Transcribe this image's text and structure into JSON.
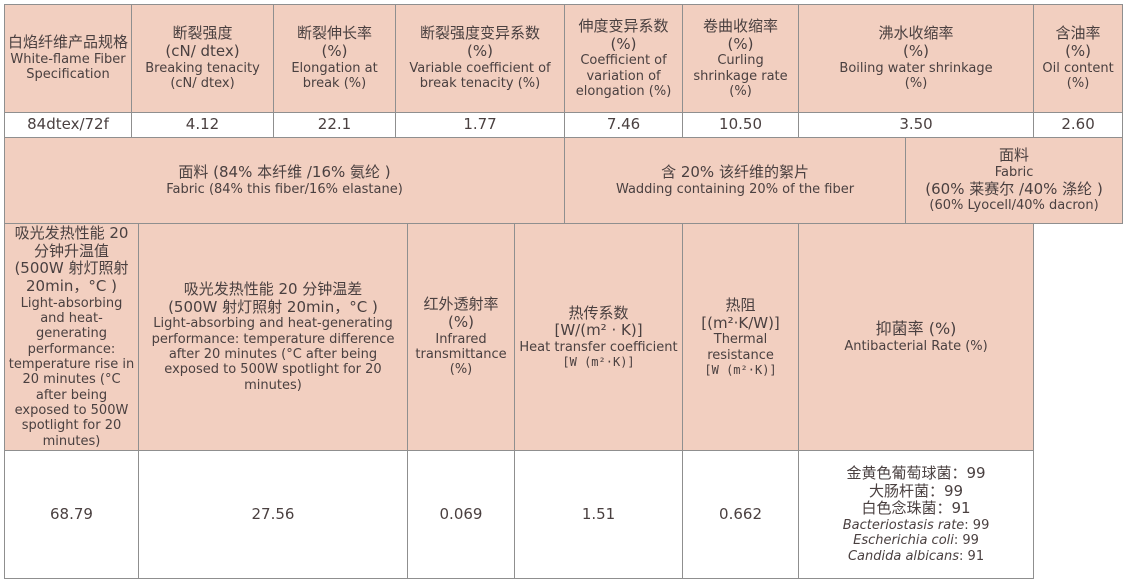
{
  "table": {
    "row1_headers": [
      {
        "zh": "白焰纤维产品规格",
        "en": "White-flame Fiber Specification"
      },
      {
        "zh": "断裂强度",
        "unit": "(cN/ dtex)",
        "en": "Breaking tenacity",
        "en_unit": "(cN/ dtex)"
      },
      {
        "zh": "断裂伸长率",
        "unit": "(%)",
        "en": "Elongation at break (%)"
      },
      {
        "zh": "断裂强度变异系数",
        "unit": "(%)",
        "en": "Variable coefficient of break tenacity (%)"
      },
      {
        "zh": "伸度变异系数",
        "unit": "(%)",
        "en": "Coefficient of variation of elongation (%)"
      },
      {
        "zh": "卷曲收缩率",
        "unit": "(%)",
        "en": "Curling shrinkage rate",
        "en_unit": "(%)"
      },
      {
        "zh": "沸水收缩率",
        "unit": "(%)",
        "en": "Boiling water shrinkage",
        "en_unit": "(%)"
      },
      {
        "zh": "含油率",
        "unit": "(%)",
        "en": "Oil content",
        "en_unit": "(%)"
      }
    ],
    "row1_values": [
      "84dtex/72f",
      "4.12",
      "22.1",
      "1.77",
      "7.46",
      "10.50",
      "3.50",
      "2.60"
    ],
    "row2_headers": {
      "fabric_a": {
        "zh": "面料 (84% 本纤维 /16% 氨纶 )",
        "en": "Fabric (84% this fiber/16% elastane)"
      },
      "wadding": {
        "zh": "含 20% 该纤维的絮片",
        "en": "Wadding containing 20% of the fiber"
      },
      "fabric_b": {
        "zh": "面料",
        "en": "Fabric",
        "zh2": "(60% 莱赛尔 /40% 涤纶 )",
        "en2": "(60% Lyocell/40% dacron)"
      }
    },
    "row3_headers": [
      {
        "zh": "吸光发热性能 20 分钟升温值",
        "zh2": "(500W 射灯照射 20min，°C )",
        "en": "Light-absorbing and heat-generating performance: temperature rise in 20 minutes (°C after being exposed to 500W spotlight for 20 minutes)"
      },
      {
        "zh": "吸光发热性能 20 分钟温差",
        "zh2": "(500W 射灯照射 20min，°C )",
        "en": "Light-absorbing and heat-generating performance: temperature difference after 20 minutes (°C after being exposed to 500W spotlight for 20 minutes)"
      },
      {
        "zh": "红外透射率",
        "unit": "(%)",
        "en": "Infrared transmittance",
        "en_unit": "(%)"
      },
      {
        "zh": "热传系数",
        "unit": "[W/(m² · K)]",
        "en": "Heat transfer coefficient",
        "en_unit": "[W (m²·K)]"
      },
      {
        "zh": "热阻",
        "unit": "[(m²·K/W)]",
        "en": "Thermal resistance",
        "en_unit": "[W (m²·K)]"
      },
      {
        "zh": "抑菌率 (%)",
        "en": "Antibacterial Rate (%)"
      }
    ],
    "row3_values": [
      "68.79",
      "27.56",
      "0.069",
      "1.51",
      "0.662"
    ],
    "antibacterial": {
      "zh_lines": [
        "金黄色葡萄球菌：99",
        "大肠杆菌：99",
        "白色念珠菌：91"
      ],
      "en_lines": [
        {
          "name": "Bacteriostasis rate",
          "value": ": 99"
        },
        {
          "name": "Escherichia coli",
          "value": ": 99"
        },
        {
          "name": "Candida albicans",
          "value": ": 91"
        }
      ]
    }
  },
  "colors": {
    "header_bg": "#f2cfc0",
    "border": "#8f8f8f",
    "text": "#4a4040"
  }
}
